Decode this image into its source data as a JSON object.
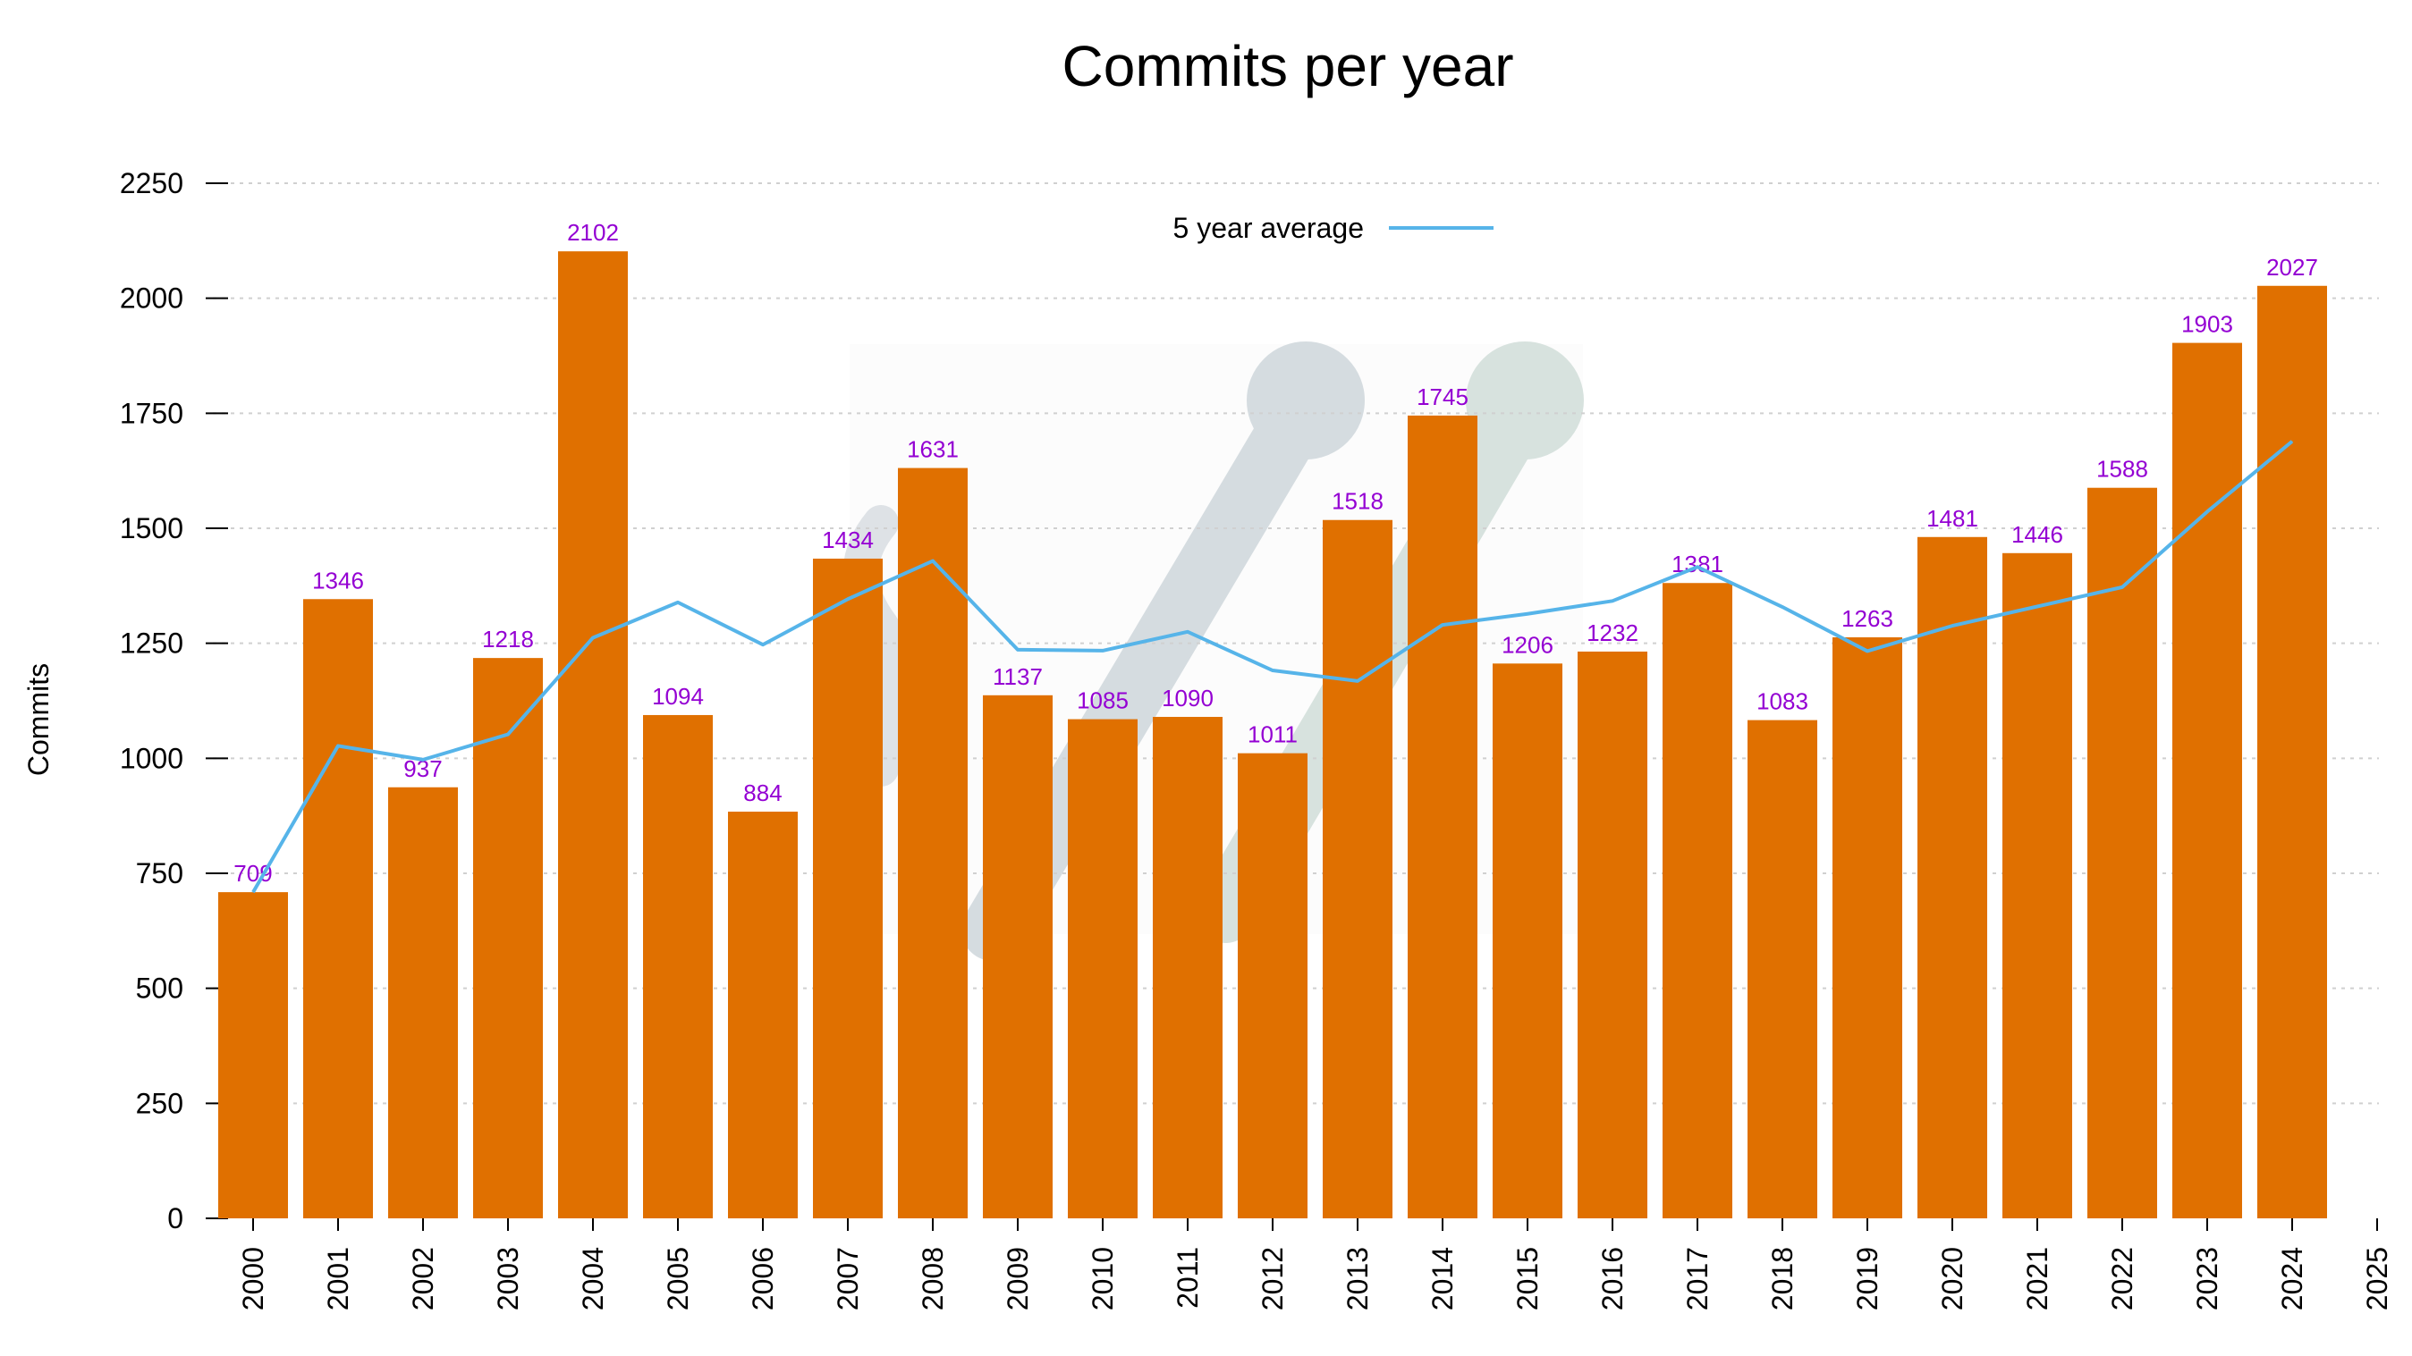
{
  "chart_data": {
    "type": "bar",
    "title": "Commits per year",
    "xlabel": "",
    "ylabel": "Commits",
    "categories": [
      "2000",
      "2001",
      "2002",
      "2003",
      "2004",
      "2005",
      "2006",
      "2007",
      "2008",
      "2009",
      "2010",
      "2011",
      "2012",
      "2013",
      "2014",
      "2015",
      "2016",
      "2017",
      "2018",
      "2019",
      "2020",
      "2021",
      "2022",
      "2023",
      "2024"
    ],
    "x_tick_labels": [
      "2000",
      "2001",
      "2002",
      "2003",
      "2004",
      "2005",
      "2006",
      "2007",
      "2008",
      "2009",
      "2010",
      "2011",
      "2012",
      "2013",
      "2014",
      "2015",
      "2016",
      "2017",
      "2018",
      "2019",
      "2020",
      "2021",
      "2022",
      "2023",
      "2024",
      "2025"
    ],
    "y_tick_labels": [
      "0",
      "250",
      "500",
      "750",
      "1000",
      "1250",
      "1500",
      "1750",
      "2000",
      "2250"
    ],
    "ylim": [
      0,
      2250
    ],
    "grid": true,
    "series": [
      {
        "name": "Commits",
        "kind": "bar",
        "values": [
          709,
          1346,
          937,
          1218,
          2102,
          1094,
          884,
          1434,
          1631,
          1137,
          1085,
          1090,
          1011,
          1518,
          1745,
          1206,
          1232,
          1381,
          1083,
          1263,
          1481,
          1446,
          1588,
          1903,
          2027
        ],
        "value_labels": [
          "709",
          "1346",
          "937",
          "1218",
          "2102",
          "1094",
          "884",
          "1434",
          "1631",
          "1137",
          "1085",
          "1090",
          "1011",
          "1518",
          "1745",
          "1206",
          "1232",
          "1381",
          "1083",
          "1263",
          "1481",
          "1446",
          "1588",
          "1903",
          "2027"
        ],
        "color": "#e07000",
        "label_color": "#9400d3"
      },
      {
        "name": "5 year average",
        "kind": "line",
        "values": [
          709,
          1027,
          997,
          1052,
          1262,
          1339,
          1247,
          1346,
          1429,
          1236,
          1234,
          1275,
          1191,
          1168,
          1290,
          1314,
          1342,
          1416,
          1329,
          1233,
          1288,
          1330,
          1372,
          1536,
          1689
        ],
        "color": "#56b4e9"
      }
    ],
    "legend": {
      "position": "top-center",
      "entries": [
        "5 year average"
      ]
    }
  }
}
